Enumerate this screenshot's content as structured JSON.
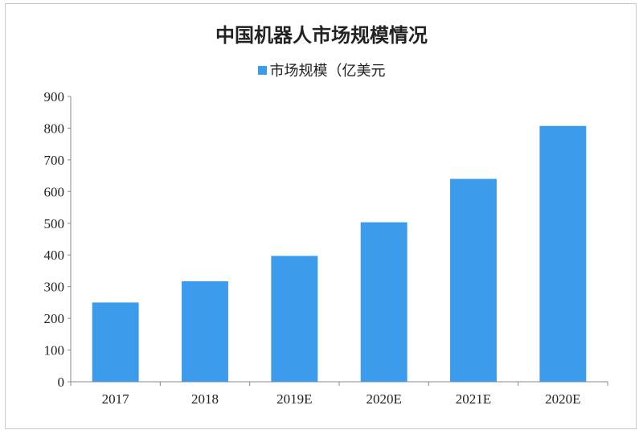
{
  "chart_data": {
    "type": "bar",
    "title": "中国机器人市场规模情况",
    "categories": [
      "2017",
      "2018",
      "2019E",
      "2020E",
      "2021E",
      "2020E"
    ],
    "series": [
      {
        "name": "市场规模（亿美元",
        "values": [
          250,
          317,
          397,
          503,
          640,
          807
        ],
        "color": "#3d9bec"
      }
    ],
    "xlabel": "",
    "ylabel": "",
    "ylim": [
      0,
      900
    ],
    "yticks": [
      0,
      100,
      200,
      300,
      400,
      500,
      600,
      700,
      800,
      900
    ],
    "grid": false,
    "legend_position": "top"
  }
}
